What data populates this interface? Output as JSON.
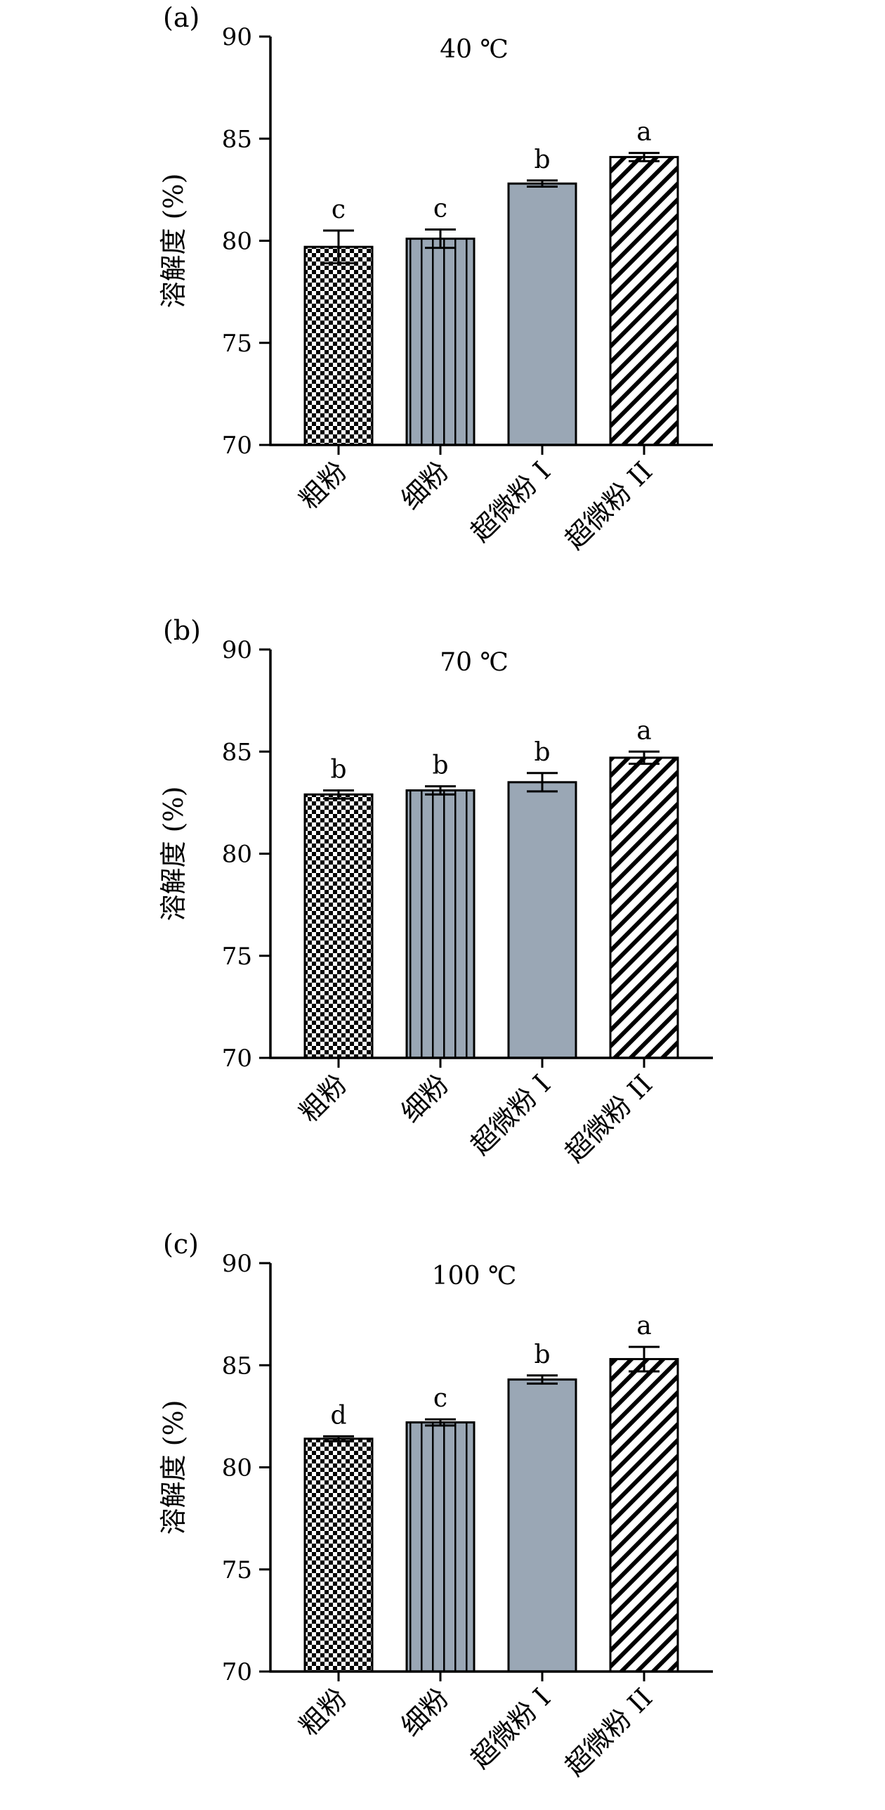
{
  "colors": {
    "bar_fill": "#9aa7b5",
    "axis": "#000000",
    "pattern_ink": "#000000",
    "pattern_light": "#ffffff"
  },
  "chart_data": [
    {
      "type": "bar",
      "panel_label": "(a)",
      "title": "40 ℃",
      "ylabel": "溶解度 (%)",
      "ylim": [
        70,
        90
      ],
      "yticks": [
        "70",
        "75",
        "80",
        "85",
        "90"
      ],
      "categories": [
        "粗粉",
        "细粉",
        "超微粉 I",
        "超微粉 II"
      ],
      "values": [
        79.7,
        80.1,
        82.8,
        84.1
      ],
      "errors": [
        0.8,
        0.45,
        0.15,
        0.2
      ],
      "significance": [
        "c",
        "c",
        "b",
        "a"
      ],
      "patterns": [
        "checker",
        "vertical",
        "solid",
        "diagonal"
      ]
    },
    {
      "type": "bar",
      "panel_label": "(b)",
      "title": "70 ℃",
      "ylabel": "溶解度 (%)",
      "ylim": [
        70,
        90
      ],
      "yticks": [
        "70",
        "75",
        "80",
        "85",
        "90"
      ],
      "categories": [
        "粗粉",
        "细粉",
        "超微粉 I",
        "超微粉 II"
      ],
      "values": [
        82.9,
        83.1,
        83.5,
        84.7
      ],
      "errors": [
        0.2,
        0.2,
        0.45,
        0.3
      ],
      "significance": [
        "b",
        "b",
        "b",
        "a"
      ],
      "patterns": [
        "checker",
        "vertical",
        "solid",
        "diagonal"
      ]
    },
    {
      "type": "bar",
      "panel_label": "(c)",
      "title": "100 ℃",
      "ylabel": "溶解度 (%)",
      "ylim": [
        70,
        90
      ],
      "yticks": [
        "70",
        "75",
        "80",
        "85",
        "90"
      ],
      "categories": [
        "粗粉",
        "细粉",
        "超微粉 I",
        "超微粉 II"
      ],
      "values": [
        81.4,
        82.2,
        84.3,
        85.3
      ],
      "errors": [
        0.12,
        0.15,
        0.2,
        0.6
      ],
      "significance": [
        "d",
        "c",
        "b",
        "a"
      ],
      "patterns": [
        "checker",
        "vertical",
        "solid",
        "diagonal"
      ]
    }
  ]
}
